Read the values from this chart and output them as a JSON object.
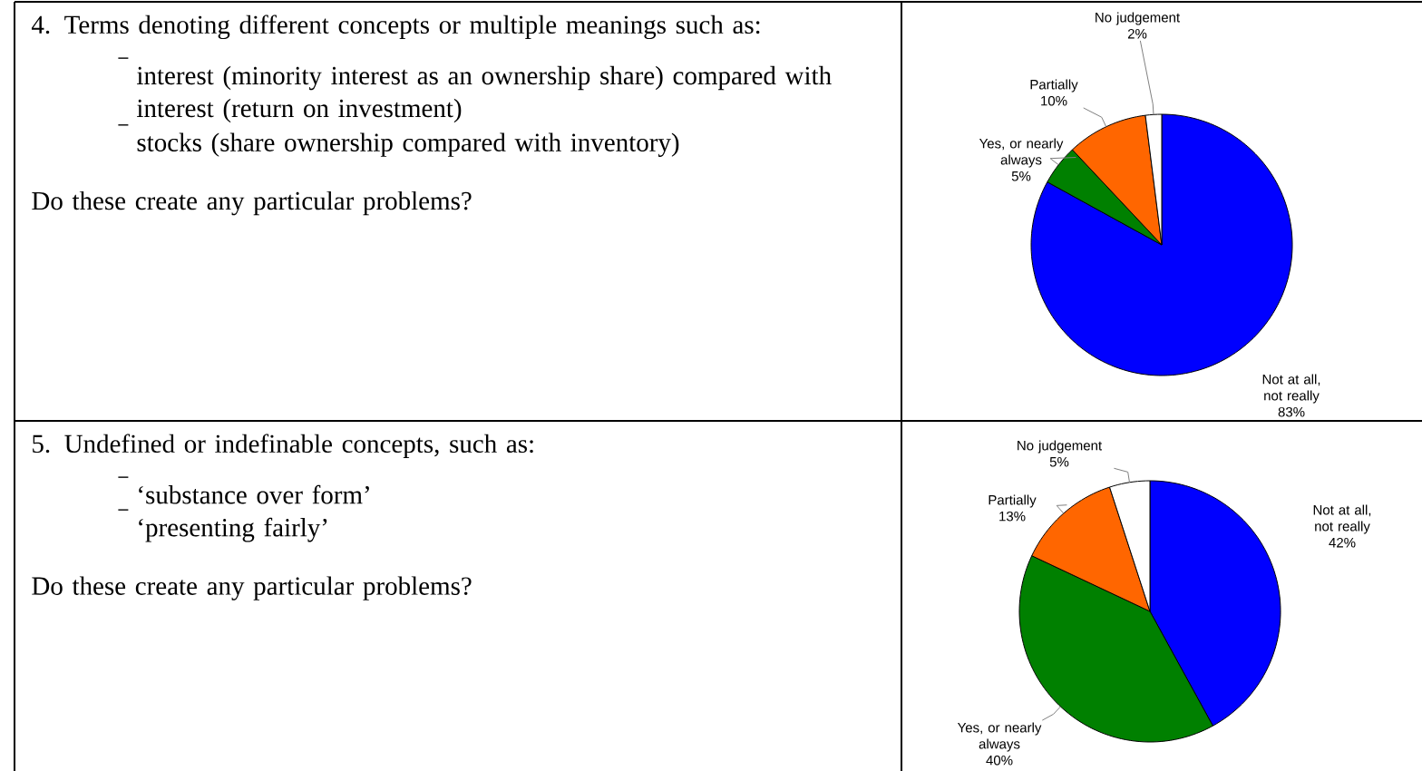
{
  "chart_data": [
    {
      "type": "other",
      "title": "4. Terms denoting different concepts or multiple meanings such as:",
      "annotations": [
        "interest (minority interest as an ownership share) compared with interest (return on investment)",
        "stocks (share ownership compared with inventory)",
        "Do these create any particular problems?"
      ]
    },
    {
      "type": "pie",
      "categories": [
        "Not at all, not really",
        "Yes, or nearly always",
        "Partially",
        "No judgement"
      ],
      "values": [
        83,
        5,
        10,
        2
      ],
      "value_labels": [
        "83%",
        "5%",
        "10%",
        "2%"
      ],
      "colors": [
        "#0000ff",
        "#008000",
        "#ff6600",
        "#ffffff"
      ]
    },
    {
      "type": "other",
      "title": "5. Undefined or indefinable concepts, such as:",
      "annotations": [
        "‘substance over form’",
        "‘presenting fairly’",
        "Do these create any particular problems?"
      ]
    },
    {
      "type": "pie",
      "categories": [
        "Not at all, not really",
        "Yes, or nearly always",
        "Partially",
        "No judgement"
      ],
      "values": [
        42,
        40,
        13,
        5
      ],
      "value_labels": [
        "42%",
        "40%",
        "13%",
        "5%"
      ],
      "colors": [
        "#0000ff",
        "#008000",
        "#ff6600",
        "#ffffff"
      ]
    }
  ]
}
